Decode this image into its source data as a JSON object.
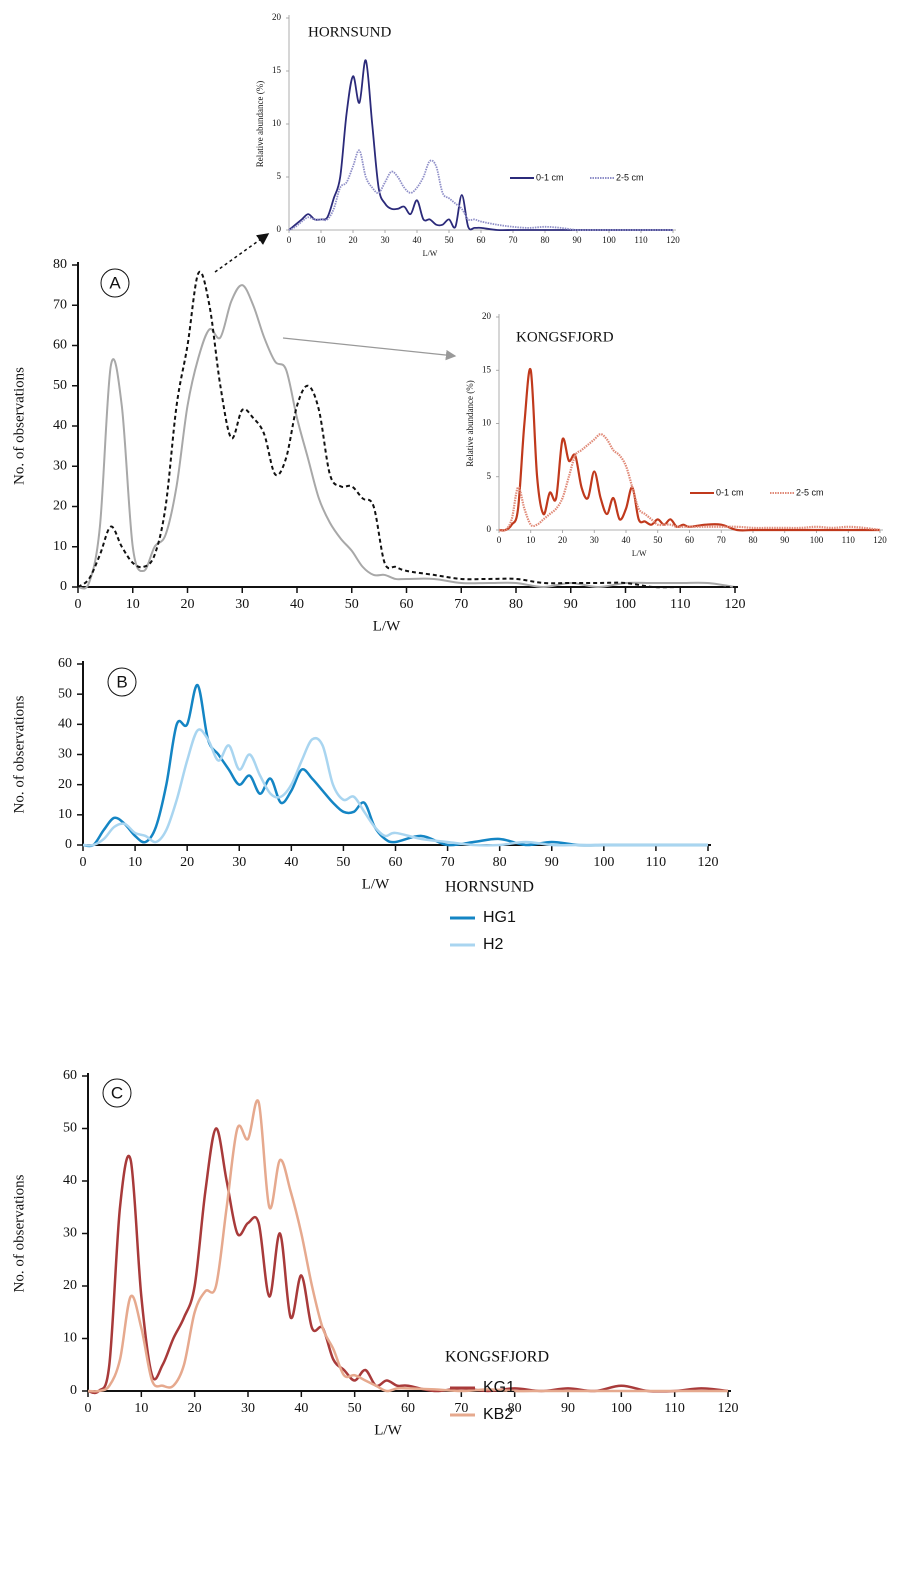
{
  "chart_data": [
    {
      "type": "line",
      "panel": "A",
      "xlabel": "L/W",
      "ylabel": "No. of observations",
      "x": [
        0,
        2,
        4,
        6,
        8,
        10,
        12,
        14,
        16,
        18,
        20,
        22,
        24,
        26,
        28,
        30,
        32,
        34,
        36,
        38,
        40,
        42,
        44,
        46,
        48,
        50,
        52,
        54,
        56,
        58,
        60,
        65,
        70,
        75,
        80,
        85,
        90,
        95,
        100,
        105,
        110,
        115,
        120
      ],
      "series": [
        {
          "color": "#a8a8a8",
          "style": "solid",
          "values": [
            0,
            1,
            15,
            55,
            45,
            10,
            4,
            10,
            13,
            25,
            45,
            57,
            64,
            62,
            71,
            75,
            70,
            62,
            56,
            54,
            42,
            32,
            22,
            16,
            12,
            9,
            5,
            3,
            3,
            2,
            2,
            2,
            1,
            1,
            1,
            0,
            1,
            0,
            1,
            1,
            1,
            1,
            0
          ]
        },
        {
          "color": "#111111",
          "style": "dashed",
          "values": [
            0,
            2,
            8,
            15,
            10,
            6,
            5,
            8,
            20,
            45,
            60,
            78,
            70,
            50,
            37,
            44,
            42,
            38,
            28,
            32,
            45,
            50,
            44,
            28,
            25,
            25,
            22,
            20,
            6,
            5,
            4,
            3,
            2,
            2,
            2,
            1,
            1,
            1,
            1,
            0,
            0,
            0,
            0
          ]
        }
      ],
      "xlim": [
        0,
        120
      ],
      "xticks": [
        0,
        10,
        20,
        30,
        40,
        50,
        60,
        70,
        80,
        90,
        100,
        110,
        120
      ],
      "ylim": [
        0,
        80
      ],
      "yticks": [
        0,
        10,
        20,
        30,
        40,
        50,
        60,
        70,
        80
      ]
    },
    {
      "type": "line",
      "title": "HORNSUND",
      "xlabel": "L/W",
      "ylabel": "Relative abundance (%)",
      "x": [
        0,
        2,
        4,
        6,
        8,
        10,
        12,
        14,
        16,
        18,
        20,
        22,
        24,
        26,
        28,
        30,
        32,
        34,
        36,
        38,
        40,
        42,
        44,
        46,
        48,
        50,
        52,
        54,
        56,
        58,
        60,
        65,
        70,
        75,
        80,
        85,
        90,
        95,
        100,
        105,
        110,
        115,
        120
      ],
      "series": [
        {
          "name": "0-1 cm",
          "color": "#2b2a7a",
          "style": "solid",
          "values": [
            0,
            0.5,
            1,
            1.5,
            1,
            1,
            1.2,
            3,
            5,
            11,
            14.5,
            12,
            16,
            10,
            4,
            2.5,
            2,
            2,
            2.2,
            1.5,
            2.8,
            1,
            1,
            0.5,
            0.5,
            1,
            0.3,
            3.3,
            0.3,
            0.2,
            0.2,
            0,
            0,
            0,
            0,
            0,
            0,
            0,
            0,
            0,
            0,
            0,
            0
          ]
        },
        {
          "name": "2-5 cm",
          "color": "#8f8fc8",
          "style": "dotted",
          "values": [
            0,
            0.3,
            0.8,
            1.2,
            1,
            1,
            1,
            2,
            4,
            4.5,
            6,
            7.5,
            5,
            4,
            3.5,
            4.5,
            5.5,
            5,
            4,
            3.5,
            4,
            5,
            6.5,
            6,
            3.5,
            3,
            2.5,
            2,
            1,
            1,
            0.8,
            0.5,
            0.3,
            0.2,
            0.3,
            0.2,
            0,
            0,
            0,
            0,
            0,
            0,
            0
          ]
        }
      ],
      "xlim": [
        0,
        120
      ],
      "xticks": [
        0,
        10,
        20,
        30,
        40,
        50,
        60,
        70,
        80,
        90,
        100,
        110,
        120
      ],
      "ylim": [
        0,
        20
      ],
      "yticks": [
        0,
        5,
        10,
        15,
        20
      ]
    },
    {
      "type": "line",
      "title": "KONGSFJORD",
      "xlabel": "L/W",
      "ylabel": "Relative abundance (%)",
      "x": [
        0,
        2,
        4,
        6,
        8,
        10,
        12,
        14,
        16,
        18,
        20,
        22,
        24,
        26,
        28,
        30,
        32,
        34,
        36,
        38,
        40,
        42,
        44,
        46,
        48,
        50,
        52,
        54,
        56,
        58,
        60,
        65,
        70,
        75,
        80,
        85,
        90,
        95,
        100,
        105,
        110,
        115,
        120
      ],
      "series": [
        {
          "name": "0-1 cm",
          "color": "#c0391c",
          "style": "solid",
          "values": [
            0,
            0,
            0.5,
            2,
            10,
            15,
            5,
            1.5,
            3.5,
            3,
            8.5,
            6.5,
            7,
            4,
            3,
            5.5,
            3,
            1.5,
            3,
            1,
            2,
            4,
            1,
            0.8,
            0.5,
            1,
            0.5,
            1,
            0.3,
            0.5,
            0.3,
            0.5,
            0.5,
            0,
            0,
            0,
            0,
            0,
            0,
            0,
            0,
            0,
            0
          ]
        },
        {
          "name": "2-5 cm",
          "color": "#e08a78",
          "style": "dotted",
          "values": [
            0,
            0,
            1,
            4,
            2,
            0.5,
            0.5,
            1,
            1.5,
            2,
            3,
            5,
            7,
            7.5,
            8,
            8.5,
            9,
            8.5,
            7.5,
            7,
            6,
            4,
            2,
            1.5,
            1,
            0.5,
            0.5,
            0.5,
            0.3,
            0.3,
            0.3,
            0.3,
            0.3,
            0.3,
            0.2,
            0.2,
            0.2,
            0.2,
            0.3,
            0.2,
            0.3,
            0.2,
            0
          ]
        }
      ],
      "xlim": [
        0,
        120
      ],
      "xticks": [
        0,
        10,
        20,
        30,
        40,
        50,
        60,
        70,
        80,
        90,
        100,
        110,
        120
      ],
      "ylim": [
        0,
        20
      ],
      "yticks": [
        0,
        5,
        10,
        15,
        20
      ]
    },
    {
      "type": "line",
      "panel": "B",
      "xlabel": "L/W",
      "ylabel": "No. of observations",
      "legend_title": "HORNSUND",
      "x": [
        0,
        2,
        4,
        6,
        8,
        10,
        12,
        14,
        16,
        18,
        20,
        22,
        24,
        26,
        28,
        30,
        32,
        34,
        36,
        38,
        40,
        42,
        44,
        46,
        48,
        50,
        52,
        54,
        56,
        58,
        60,
        65,
        70,
        75,
        80,
        85,
        90,
        95,
        100,
        105,
        110,
        115,
        120
      ],
      "series": [
        {
          "name": "HG1",
          "color": "#1485c4",
          "style": "solid",
          "values": [
            0,
            0,
            5,
            9,
            7,
            3,
            1,
            6,
            20,
            40,
            40,
            53,
            35,
            30,
            25,
            20,
            23,
            17,
            22,
            14,
            18,
            25,
            22,
            18,
            14,
            11,
            11,
            14,
            6,
            2,
            1,
            3,
            0,
            1,
            2,
            0,
            1,
            0,
            0,
            0,
            0,
            0,
            0
          ]
        },
        {
          "name": "H2",
          "color": "#a9d5f0",
          "style": "solid",
          "values": [
            0,
            0,
            2,
            6,
            7,
            4,
            3,
            1,
            5,
            15,
            28,
            38,
            35,
            28,
            33,
            25,
            30,
            23,
            17,
            16,
            20,
            28,
            35,
            33,
            20,
            15,
            16,
            11,
            6,
            3,
            4,
            2,
            1,
            0,
            0,
            1,
            0,
            0,
            0,
            0,
            0,
            0,
            0
          ]
        }
      ],
      "xlim": [
        0,
        120
      ],
      "xticks": [
        0,
        10,
        20,
        30,
        40,
        50,
        60,
        70,
        80,
        90,
        100,
        110,
        120
      ],
      "ylim": [
        0,
        60
      ],
      "yticks": [
        0,
        10,
        20,
        30,
        40,
        50,
        60
      ]
    },
    {
      "type": "line",
      "panel": "C",
      "xlabel": "L/W",
      "ylabel": "No. of observations",
      "legend_title": "KONGSFJORD",
      "x": [
        0,
        2,
        4,
        6,
        8,
        10,
        12,
        14,
        16,
        18,
        20,
        22,
        24,
        26,
        28,
        30,
        32,
        34,
        36,
        38,
        40,
        42,
        44,
        46,
        48,
        50,
        52,
        54,
        56,
        58,
        60,
        65,
        70,
        75,
        80,
        85,
        90,
        95,
        100,
        105,
        110,
        115,
        120
      ],
      "series": [
        {
          "name": "KG1",
          "color": "#a83a3a",
          "style": "solid",
          "values": [
            0,
            0,
            5,
            35,
            44,
            18,
            3,
            5,
            10,
            14,
            20,
            38,
            50,
            40,
            30,
            32,
            32,
            18,
            30,
            14,
            22,
            12,
            12,
            6,
            4,
            2,
            4,
            1,
            2,
            1,
            1,
            0,
            0.5,
            0,
            0.5,
            0,
            0.5,
            0,
            1,
            0,
            0,
            0.5,
            0
          ]
        },
        {
          "name": "KB2",
          "color": "#e6a98e",
          "style": "solid",
          "values": [
            0,
            0,
            1,
            6,
            18,
            12,
            2,
            1,
            1,
            5,
            15,
            19,
            20,
            35,
            50,
            48,
            55,
            35,
            44,
            38,
            30,
            20,
            12,
            8,
            3,
            3,
            2,
            1,
            0,
            0.5,
            0.5,
            0.3,
            0,
            0.3,
            0,
            0,
            0,
            0,
            0,
            0,
            0,
            0,
            0
          ]
        }
      ],
      "xlim": [
        0,
        120
      ],
      "xticks": [
        0,
        10,
        20,
        30,
        40,
        50,
        60,
        70,
        80,
        90,
        100,
        110,
        120
      ],
      "ylim": [
        0,
        60
      ],
      "yticks": [
        0,
        10,
        20,
        30,
        40,
        50,
        60
      ]
    }
  ]
}
